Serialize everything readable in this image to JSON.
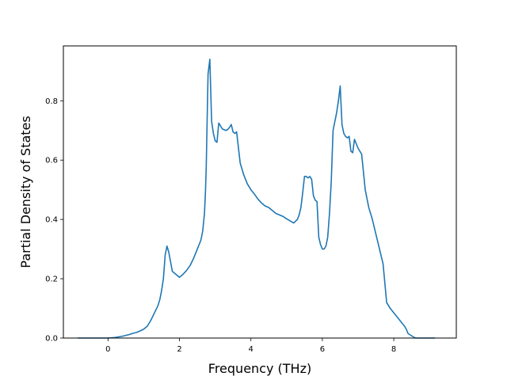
{
  "chart_data": {
    "type": "line",
    "title": "",
    "xlabel": "Frequency (THz)",
    "ylabel": "Partial Density of States",
    "xlim": [
      -1.25,
      9.75
    ],
    "ylim": [
      0.0,
      0.985
    ],
    "xticks": [
      0,
      2,
      4,
      6,
      8
    ],
    "xtick_labels": [
      "0",
      "2",
      "4",
      "6",
      "8"
    ],
    "yticks": [
      0.0,
      0.2,
      0.4,
      0.6,
      0.8
    ],
    "ytick_labels": [
      "0.0",
      "0.2",
      "0.4",
      "0.6",
      "0.8"
    ],
    "grid": false,
    "legend": "none",
    "series": [
      {
        "color": "#1f77b4",
        "x": [
          -0.85,
          -0.5,
          -0.2,
          0.0,
          0.1,
          0.2,
          0.3,
          0.4,
          0.5,
          0.6,
          0.7,
          0.8,
          0.9,
          1.0,
          1.1,
          1.2,
          1.3,
          1.4,
          1.45,
          1.5,
          1.55,
          1.6,
          1.65,
          1.7,
          1.8,
          1.9,
          2.0,
          2.1,
          2.2,
          2.3,
          2.4,
          2.5,
          2.6,
          2.65,
          2.7,
          2.73,
          2.75,
          2.8,
          2.85,
          2.9,
          2.95,
          3.0,
          3.05,
          3.1,
          3.2,
          3.3,
          3.35,
          3.4,
          3.45,
          3.5,
          3.55,
          3.6,
          3.7,
          3.8,
          3.9,
          4.0,
          4.1,
          4.2,
          4.3,
          4.4,
          4.5,
          4.6,
          4.7,
          4.8,
          4.9,
          5.0,
          5.1,
          5.2,
          5.3,
          5.35,
          5.4,
          5.45,
          5.5,
          5.55,
          5.6,
          5.65,
          5.7,
          5.75,
          5.8,
          5.85,
          5.9,
          5.95,
          6.0,
          6.05,
          6.1,
          6.15,
          6.2,
          6.25,
          6.3,
          6.4,
          6.45,
          6.5,
          6.55,
          6.6,
          6.65,
          6.7,
          6.75,
          6.8,
          6.85,
          6.9,
          7.0,
          7.05,
          7.1,
          7.2,
          7.3,
          7.4,
          7.5,
          7.6,
          7.7,
          7.8,
          7.9,
          8.0,
          8.1,
          8.2,
          8.3,
          8.35,
          8.4,
          8.6,
          8.8,
          9.0,
          9.15
        ],
        "y": [
          0.0,
          0.0,
          0.0,
          0.0,
          0.001,
          0.002,
          0.004,
          0.006,
          0.009,
          0.012,
          0.016,
          0.019,
          0.024,
          0.03,
          0.04,
          0.06,
          0.085,
          0.11,
          0.13,
          0.16,
          0.2,
          0.28,
          0.31,
          0.29,
          0.225,
          0.215,
          0.205,
          0.215,
          0.228,
          0.245,
          0.27,
          0.3,
          0.33,
          0.36,
          0.42,
          0.5,
          0.58,
          0.89,
          0.94,
          0.73,
          0.69,
          0.665,
          0.66,
          0.725,
          0.705,
          0.7,
          0.703,
          0.71,
          0.72,
          0.695,
          0.69,
          0.695,
          0.59,
          0.55,
          0.52,
          0.5,
          0.485,
          0.468,
          0.455,
          0.445,
          0.44,
          0.43,
          0.42,
          0.415,
          0.41,
          0.402,
          0.395,
          0.388,
          0.4,
          0.415,
          0.44,
          0.49,
          0.545,
          0.545,
          0.54,
          0.545,
          0.535,
          0.48,
          0.465,
          0.46,
          0.34,
          0.315,
          0.3,
          0.3,
          0.31,
          0.34,
          0.42,
          0.53,
          0.7,
          0.76,
          0.8,
          0.85,
          0.72,
          0.69,
          0.68,
          0.675,
          0.68,
          0.63,
          0.625,
          0.67,
          0.64,
          0.63,
          0.62,
          0.5,
          0.44,
          0.4,
          0.35,
          0.3,
          0.25,
          0.12,
          0.1,
          0.085,
          0.07,
          0.055,
          0.04,
          0.03,
          0.015,
          0.0,
          0.0,
          0.0,
          0.0
        ]
      }
    ]
  }
}
